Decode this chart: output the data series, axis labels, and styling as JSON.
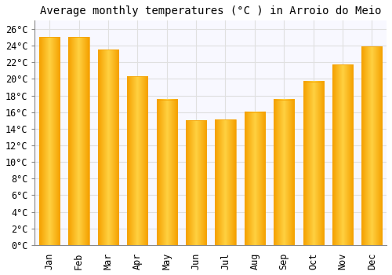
{
  "title": "Average monthly temperatures (°C ) in Arroio do Meio",
  "months": [
    "Jan",
    "Feb",
    "Mar",
    "Apr",
    "May",
    "Jun",
    "Jul",
    "Aug",
    "Sep",
    "Oct",
    "Nov",
    "Dec"
  ],
  "values": [
    25.0,
    25.0,
    23.5,
    20.3,
    17.5,
    15.0,
    15.1,
    16.0,
    17.5,
    19.7,
    21.7,
    23.9
  ],
  "bar_color_center": "#FFD040",
  "bar_color_edge": "#F5A000",
  "ylim": [
    0,
    27
  ],
  "yticks": [
    0,
    2,
    4,
    6,
    8,
    10,
    12,
    14,
    16,
    18,
    20,
    22,
    24,
    26
  ],
  "background_color": "#FFFFFF",
  "plot_bg_color": "#F8F8FF",
  "grid_color": "#E0E0E0",
  "title_fontsize": 10,
  "tick_fontsize": 8.5,
  "font_family": "monospace",
  "bar_width": 0.7
}
